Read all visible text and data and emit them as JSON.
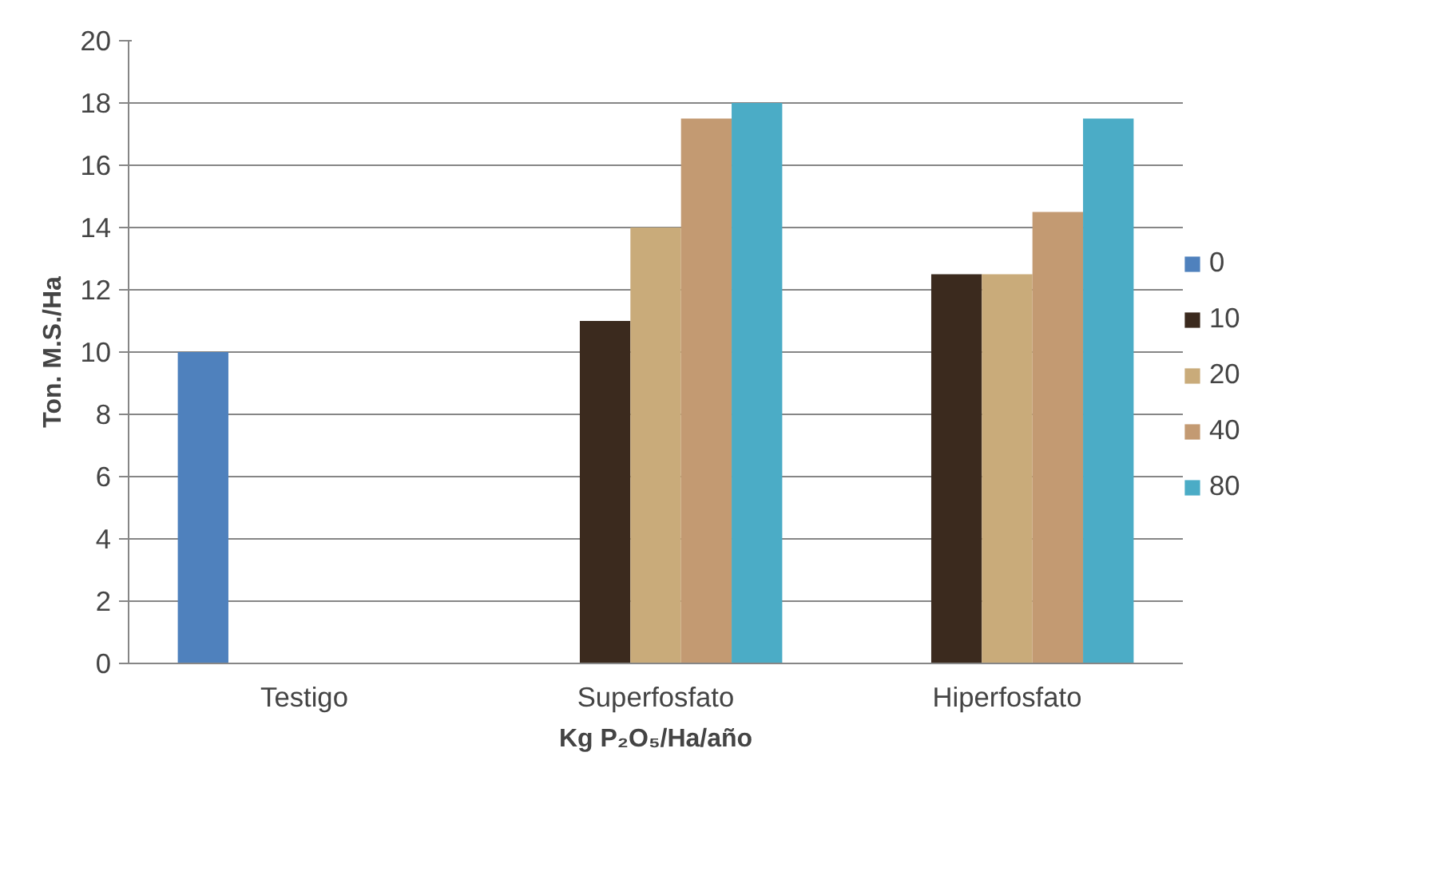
{
  "chart_data": {
    "type": "bar",
    "xlabel": "Kg P₂O₅/Ha/año",
    "ylabel": "Ton. M.S./Ha",
    "categories": [
      "Testigo",
      "Superfosfato",
      "Hiperfosfato"
    ],
    "series": [
      {
        "name": "0",
        "color": "#4f81bd",
        "values": [
          10,
          null,
          null
        ]
      },
      {
        "name": "10",
        "color": "#3b2a1e",
        "values": [
          null,
          11,
          12.5
        ]
      },
      {
        "name": "20",
        "color": "#c9ab7a",
        "values": [
          null,
          14,
          12.5
        ]
      },
      {
        "name": "40",
        "color": "#c39a72",
        "values": [
          null,
          17.5,
          14.5
        ]
      },
      {
        "name": "80",
        "color": "#4bacc6",
        "values": [
          null,
          18,
          17.5
        ]
      }
    ],
    "ylim": [
      0,
      20
    ],
    "yticks": [
      0,
      2,
      4,
      6,
      8,
      10,
      12,
      14,
      16,
      18,
      20
    ],
    "grid": "y",
    "legend": "right"
  }
}
